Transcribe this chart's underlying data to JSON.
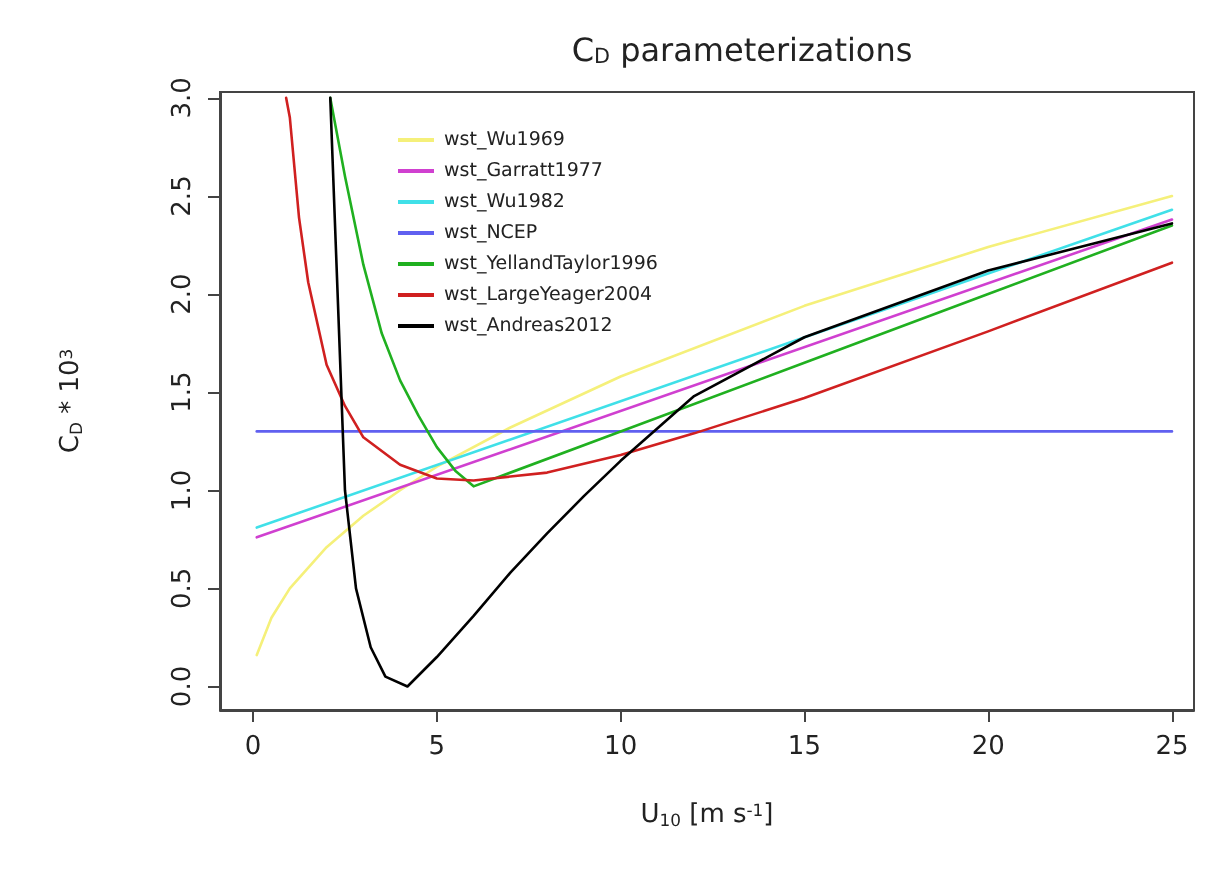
{
  "chart_data": {
    "type": "line",
    "title": "C$_{D}$ parameterizations",
    "xlabel": "U$_{10}$ [m s$^{-1}$]",
    "ylabel": "C$_{D}$ * 10$^{3}$",
    "xlim": [
      -0.9,
      25.6
    ],
    "ylim": [
      -0.12,
      3.03
    ],
    "xticks": [
      0,
      5,
      10,
      15,
      20,
      25
    ],
    "yticks": [
      {
        "value": 0,
        "label": "0.0"
      },
      {
        "value": 0.5,
        "label": "0.5"
      },
      {
        "value": 1,
        "label": "1.0"
      },
      {
        "value": 1.5,
        "label": "1.5"
      },
      {
        "value": 2,
        "label": "2.0"
      },
      {
        "value": 2.5,
        "label": "2.5"
      },
      {
        "value": 3,
        "label": "3.0"
      }
    ],
    "grid": false,
    "legend": "top left",
    "marker": "none",
    "line_style": "solid",
    "series": [
      {
        "name": "wst_Wu1969",
        "color": "#f5f07a",
        "x": [
          0.1,
          0.5,
          1,
          2,
          3,
          4,
          5,
          7,
          10,
          15,
          20,
          25
        ],
        "values": [
          0.16,
          0.35,
          0.5,
          0.71,
          0.87,
          1.0,
          1.12,
          1.32,
          1.58,
          1.94,
          2.24,
          2.5
        ]
      },
      {
        "name": "wst_Garratt1977",
        "color": "#d040d0",
        "x": [
          0.1,
          25
        ],
        "values": [
          0.76,
          2.38
        ]
      },
      {
        "name": "wst_Wu1982",
        "color": "#40e0e8",
        "x": [
          0.1,
          25
        ],
        "values": [
          0.81,
          2.43
        ]
      },
      {
        "name": "wst_NCEP",
        "color": "#6060f0",
        "x": [
          0.1,
          25
        ],
        "values": [
          1.3,
          1.3
        ]
      },
      {
        "name": "wst_YellandTaylor1996",
        "color": "#20b020",
        "x": [
          2.1,
          2.5,
          3,
          3.5,
          4,
          4.5,
          5,
          5.5,
          6,
          10,
          15,
          20,
          25
        ],
        "values": [
          3.0,
          2.6,
          2.15,
          1.8,
          1.56,
          1.38,
          1.22,
          1.1,
          1.02,
          1.3,
          1.65,
          2.0,
          2.35
        ]
      },
      {
        "name": "wst_LargeYeager2004",
        "color": "#d02020",
        "x": [
          0.9,
          1,
          1.25,
          1.5,
          2,
          2.5,
          3,
          4,
          5,
          6,
          7,
          8,
          10,
          12,
          15,
          20,
          25
        ],
        "values": [
          3.0,
          2.9,
          2.39,
          2.06,
          1.64,
          1.43,
          1.27,
          1.13,
          1.06,
          1.05,
          1.07,
          1.09,
          1.18,
          1.29,
          1.47,
          1.81,
          2.16
        ]
      },
      {
        "name": "wst_Andreas2012",
        "color": "#000000",
        "x": [
          2.1,
          2.3,
          2.5,
          2.8,
          3.2,
          3.6,
          4.2,
          5,
          6,
          7,
          8,
          9,
          10,
          12,
          15,
          20,
          25
        ],
        "values": [
          3.0,
          2.0,
          1.0,
          0.5,
          0.2,
          0.05,
          0.0,
          0.15,
          0.36,
          0.58,
          0.78,
          0.97,
          1.15,
          1.48,
          1.78,
          2.12,
          2.36
        ]
      }
    ]
  }
}
